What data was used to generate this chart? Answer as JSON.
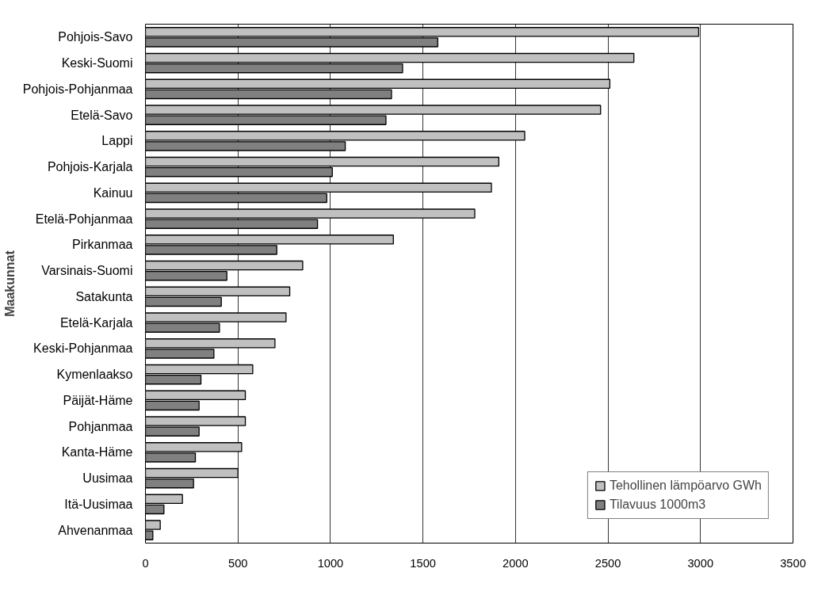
{
  "chart_data": {
    "type": "bar",
    "orientation": "horizontal",
    "ylabel": "Maakunnat",
    "categories": [
      "Pohjois-Savo",
      "Keski-Suomi",
      "Pohjois-Pohjanmaa",
      "Etelä-Savo",
      "Lappi",
      "Pohjois-Karjala",
      "Kainuu",
      "Etelä-Pohjanmaa",
      "Pirkanmaa",
      "Varsinais-Suomi",
      "Satakunta",
      "Etelä-Karjala",
      "Keski-Pohjanmaa",
      "Kymenlaakso",
      "Päijät-Häme",
      "Pohjanmaa",
      "Kanta-Häme",
      "Uusimaa",
      "Itä-Uusimaa",
      "Ahvenanmaa"
    ],
    "series": [
      {
        "name": "Tehollinen lämpöarvo GWh",
        "color": "#c0c0c0",
        "values": [
          2990,
          2640,
          2510,
          2460,
          2050,
          1910,
          1870,
          1780,
          1340,
          850,
          780,
          760,
          700,
          580,
          540,
          540,
          520,
          500,
          200,
          80
        ]
      },
      {
        "name": "Tilavuus 1000m3",
        "color": "#808080",
        "values": [
          1580,
          1390,
          1330,
          1300,
          1080,
          1010,
          980,
          930,
          710,
          440,
          410,
          400,
          370,
          300,
          290,
          290,
          270,
          260,
          100,
          40
        ]
      }
    ],
    "xlim": [
      0,
      3500
    ],
    "xticks": [
      0,
      500,
      1000,
      1500,
      2000,
      2500,
      3000,
      3500
    ],
    "grid": "x",
    "legend": "bottom right"
  }
}
